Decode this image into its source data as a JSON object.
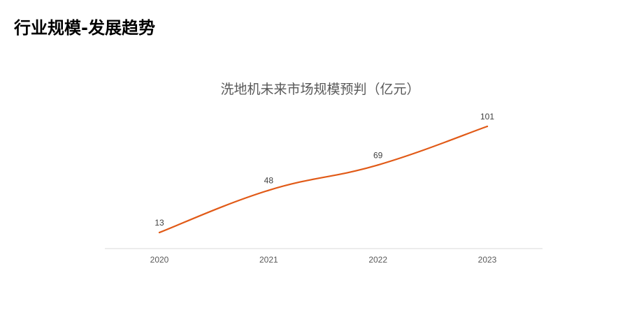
{
  "page": {
    "heading": "行业规模-发展趋势"
  },
  "chart_data": {
    "type": "line",
    "title": "洗地机未来市场规模预判（亿元）",
    "xlabel": "",
    "ylabel": "",
    "categories": [
      "2020",
      "2021",
      "2022",
      "2023"
    ],
    "series": [
      {
        "values": [
          13,
          48,
          69,
          101
        ],
        "color": "#E15A17"
      }
    ],
    "ylim": [
      0,
      101
    ],
    "grid": false,
    "data_labels": true,
    "smooth": true,
    "axis_color": "#D9D9D9",
    "label_color": "#595959"
  }
}
